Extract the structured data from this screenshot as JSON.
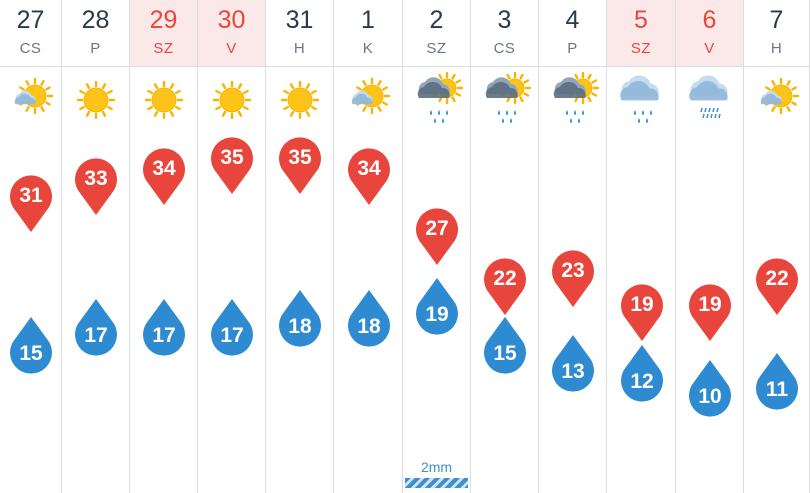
{
  "colors": {
    "max_temp": "#e8463c",
    "min_temp": "#2f8bd1",
    "weekend_header": "#fbe9e9",
    "weekend_text": "#e8463c",
    "day_text": "#2b3a4a",
    "grid": "#d9dee3"
  },
  "days": [
    {
      "date": "27",
      "day": "CS",
      "weekend": false,
      "icon": "sun-cloud-icon",
      "max": "31",
      "min": "15",
      "precip": ""
    },
    {
      "date": "28",
      "day": "P",
      "weekend": false,
      "icon": "sun-icon",
      "max": "33",
      "min": "17",
      "precip": ""
    },
    {
      "date": "29",
      "day": "SZ",
      "weekend": true,
      "icon": "sun-icon",
      "max": "34",
      "min": "17",
      "precip": ""
    },
    {
      "date": "30",
      "day": "V",
      "weekend": true,
      "icon": "sun-icon",
      "max": "35",
      "min": "17",
      "precip": ""
    },
    {
      "date": "31",
      "day": "H",
      "weekend": false,
      "icon": "sun-icon",
      "max": "35",
      "min": "18",
      "precip": ""
    },
    {
      "date": "1",
      "day": "K",
      "weekend": false,
      "icon": "sun-cloud-icon",
      "max": "34",
      "min": "18",
      "precip": ""
    },
    {
      "date": "2",
      "day": "SZ",
      "weekend": false,
      "icon": "sun-cloud-rain-icon",
      "max": "27",
      "min": "19",
      "precip": "2mm"
    },
    {
      "date": "3",
      "day": "CS",
      "weekend": false,
      "icon": "sun-cloud-rain-icon",
      "max": "22",
      "min": "15",
      "precip": ""
    },
    {
      "date": "4",
      "day": "P",
      "weekend": false,
      "icon": "sun-cloud-rain-icon",
      "max": "23",
      "min": "13",
      "precip": ""
    },
    {
      "date": "5",
      "day": "SZ",
      "weekend": true,
      "icon": "cloud-rain-icon",
      "max": "19",
      "min": "12",
      "precip": ""
    },
    {
      "date": "6",
      "day": "V",
      "weekend": true,
      "icon": "cloud-drizzle-icon",
      "max": "19",
      "min": "10",
      "precip": ""
    },
    {
      "date": "7",
      "day": "H",
      "weekend": false,
      "icon": "sun-cloud-icon",
      "max": "22",
      "min": "11",
      "precip": ""
    }
  ]
}
